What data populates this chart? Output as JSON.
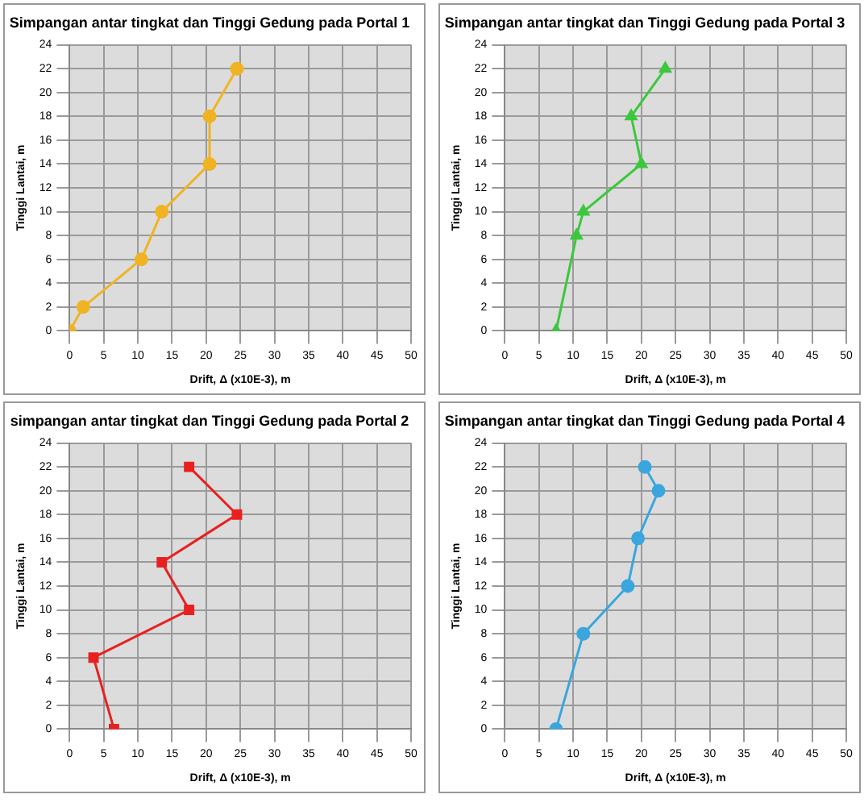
{
  "chart_data": [
    {
      "type": "line",
      "title": "Simpangan antar tingkat dan Tinggi Gedung pada Portal 1",
      "xlabel": "Drift, Δ (x10E-3), m",
      "ylabel": "Tinggi Lantai, m",
      "xlim": [
        0,
        50
      ],
      "xticks": [
        0,
        5,
        10,
        15,
        20,
        25,
        30,
        35,
        40,
        45,
        50
      ],
      "ylim": [
        0,
        24
      ],
      "yticks": [
        0,
        2,
        4,
        6,
        8,
        10,
        12,
        14,
        16,
        18,
        20,
        22,
        24
      ],
      "grid": true,
      "legend": false,
      "marker": "circle",
      "series": [
        {
          "color": "#f0b323",
          "x": [
            0,
            2,
            10.5,
            13.5,
            20.5,
            20.5,
            24.5
          ],
          "values": [
            0,
            2,
            6,
            10,
            14,
            18,
            22
          ]
        }
      ]
    },
    {
      "type": "line",
      "title": "Simpangan antar tingkat dan Tinggi Gedung pada Portal 3",
      "xlabel": "Drift, Δ (x10E-3), m",
      "ylabel": "Tinggi Lantai, m",
      "xlim": [
        0,
        50
      ],
      "xticks": [
        0,
        5,
        10,
        15,
        20,
        25,
        30,
        35,
        40,
        45,
        50
      ],
      "ylim": [
        0,
        24
      ],
      "yticks": [
        0,
        2,
        4,
        6,
        8,
        10,
        12,
        14,
        16,
        18,
        20,
        22,
        24
      ],
      "grid": true,
      "legend": false,
      "marker": "triangle",
      "series": [
        {
          "color": "#3cc83c",
          "x": [
            7.5,
            10.5,
            11.5,
            20,
            18.5,
            23.5
          ],
          "values": [
            0,
            8,
            10,
            14,
            18,
            22
          ]
        }
      ]
    },
    {
      "type": "line",
      "title": "simpangan antar tingkat dan Tinggi Gedung pada Portal 2",
      "xlabel": "Drift, Δ (x10E-3), m",
      "ylabel": "Tinggi Lantai, m",
      "xlim": [
        0,
        50
      ],
      "xticks": [
        0,
        5,
        10,
        15,
        20,
        25,
        30,
        35,
        40,
        45,
        50
      ],
      "ylim": [
        0,
        24
      ],
      "yticks": [
        0,
        2,
        4,
        6,
        8,
        10,
        12,
        14,
        16,
        18,
        20,
        22,
        24
      ],
      "grid": true,
      "legend": false,
      "marker": "square",
      "series": [
        {
          "color": "#e82020",
          "x": [
            6.5,
            3.5,
            17.5,
            13.5,
            24.5,
            17.5
          ],
          "values": [
            0,
            6,
            10,
            14,
            18,
            22
          ]
        }
      ]
    },
    {
      "type": "line",
      "title": "Simpangan antar tingkat dan Tinggi Gedung pada Portal 4",
      "xlabel": "Drift, Δ (x10E-3), m",
      "ylabel": "Tinggi Lantai, m",
      "xlim": [
        0,
        50
      ],
      "xticks": [
        0,
        5,
        10,
        15,
        20,
        25,
        30,
        35,
        40,
        45,
        50
      ],
      "ylim": [
        0,
        24
      ],
      "yticks": [
        0,
        2,
        4,
        6,
        8,
        10,
        12,
        14,
        16,
        18,
        20,
        22,
        24
      ],
      "grid": true,
      "legend": false,
      "marker": "circle",
      "series": [
        {
          "color": "#3aa6dd",
          "x": [
            7.5,
            11.5,
            18,
            19.5,
            22.5,
            20.5
          ],
          "values": [
            0,
            8,
            12,
            16,
            20,
            22
          ]
        }
      ]
    }
  ]
}
